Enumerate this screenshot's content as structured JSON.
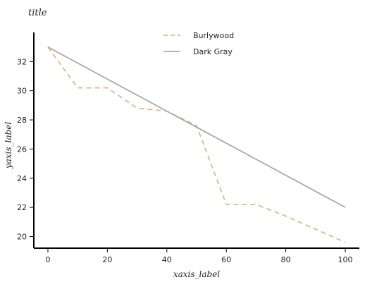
{
  "chart_data": {
    "type": "line",
    "title": "title",
    "xlabel": "xaxis_label",
    "ylabel": "yaxis_label",
    "xlim": [
      0,
      100
    ],
    "ylim": [
      19.2,
      34.0
    ],
    "x_ticks": [
      0,
      20,
      40,
      60,
      80,
      100
    ],
    "y_ticks": [
      20,
      22,
      24,
      26,
      28,
      30,
      32
    ],
    "grid": false,
    "legend_position": "top",
    "series": [
      {
        "name": "Burlywood",
        "color": "#deb887",
        "dash": "dashed",
        "x": [
          0,
          10,
          20,
          30,
          40,
          50,
          60,
          70,
          80,
          90,
          100
        ],
        "y": [
          33.0,
          30.2,
          30.2,
          28.8,
          28.6,
          27.6,
          22.2,
          22.2,
          21.4,
          20.5,
          19.6
        ]
      },
      {
        "name": "Dark Gray",
        "color": "#a9a9a9",
        "dash": "solid",
        "x": [
          0,
          100
        ],
        "y": [
          33.0,
          22.0
        ]
      }
    ]
  }
}
